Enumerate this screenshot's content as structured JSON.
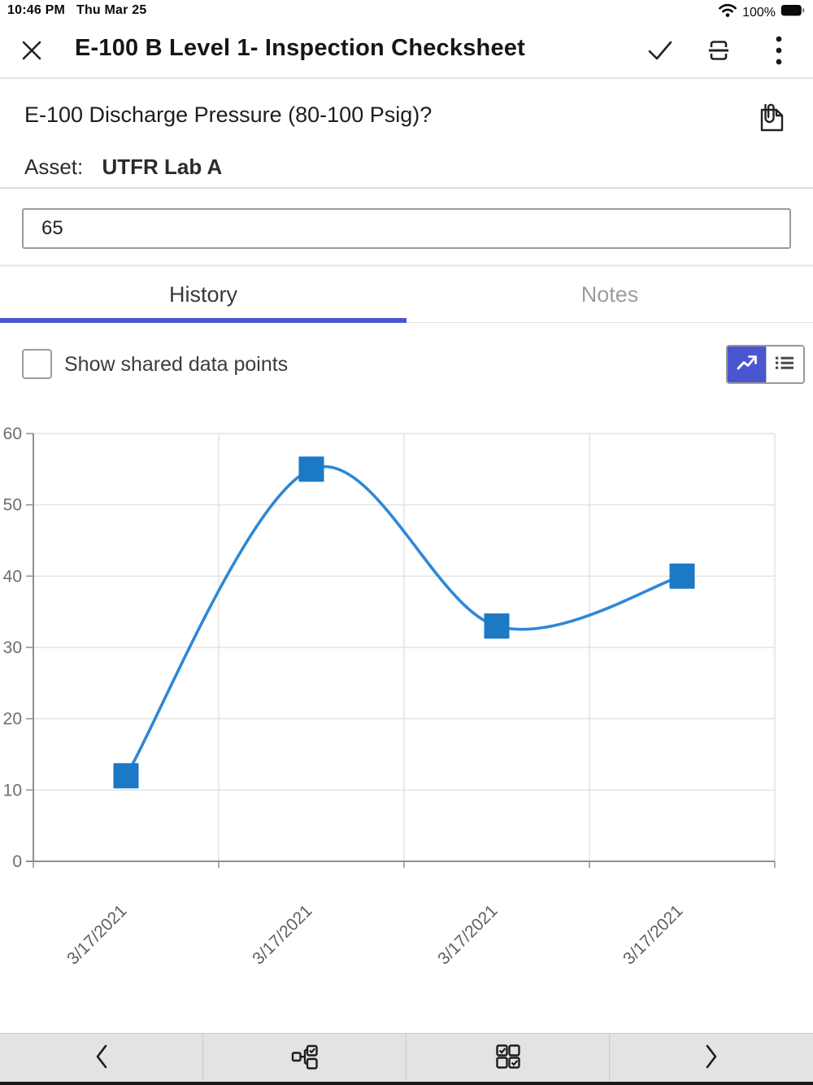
{
  "status_bar": {
    "time": "10:46 PM",
    "date": "Thu Mar 25",
    "battery_percent": "100%"
  },
  "header": {
    "title": "E-100 B Level 1- Inspection Checksheet"
  },
  "question": {
    "text": "E-100 Discharge Pressure (80-100 Psig)?",
    "asset_label": "Asset:",
    "asset_value": "UTFR Lab A",
    "answer_value": "65"
  },
  "tabs": {
    "history_label": "History",
    "notes_label": "Notes",
    "active": "History"
  },
  "controls": {
    "show_shared_label": "Show shared data points",
    "show_shared_checked": false,
    "active_view": "chart"
  },
  "colors": {
    "accent": "#4a56cf",
    "line": "#2f87d6",
    "marker": "#1b79c6",
    "grid": "#e3e3e3",
    "axis": "#8f8f8f",
    "tick_text": "#6e6e6e",
    "xlabel_text": "#5f5f5f"
  },
  "chart_data": {
    "type": "line",
    "x": [
      "3/17/2021",
      "3/17/2021",
      "3/17/2021",
      "3/17/2021"
    ],
    "values": [
      12,
      55,
      33,
      40
    ],
    "ylim": [
      0,
      60
    ],
    "yticks": [
      0,
      10,
      20,
      30,
      40,
      50,
      60
    ],
    "title": "",
    "xlabel": "",
    "ylabel": "",
    "grid": true,
    "legend": "none",
    "marker": "square",
    "smooth": true,
    "x_labels_rotation_deg": -45
  }
}
